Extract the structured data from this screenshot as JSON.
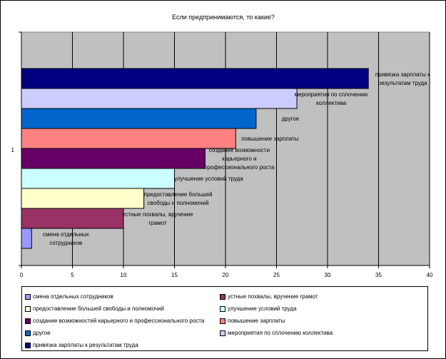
{
  "chart_data": {
    "type": "bar",
    "orientation": "horizontal",
    "title": "Если предпринимаются, то какие?",
    "category_label": "1",
    "xlim": [
      0,
      40
    ],
    "x_ticks": [
      0,
      5,
      10,
      15,
      20,
      25,
      30,
      35,
      40
    ],
    "grid": true,
    "plot_background": "#c0c0c0",
    "series": [
      {
        "name": "смена отдельных сотрудников",
        "value": 1,
        "color": "#9999ff",
        "label_lines": [
          "смена отдельных",
          "сотрудников"
        ]
      },
      {
        "name": "устные похвалы, вручение грамот",
        "value": 10,
        "color": "#993366",
        "label_lines": [
          "устные похвалы, вручение",
          "грамот"
        ]
      },
      {
        "name": "предоставление большей свободы и полномочий",
        "value": 12,
        "color": "#ffffcc",
        "label_lines": [
          "предоставление большей",
          "свободы и полномочий"
        ]
      },
      {
        "name": "улучшение условий труда",
        "value": 15,
        "color": "#ccffff",
        "label_lines": [
          "улучшение условий труда"
        ]
      },
      {
        "name": "создание возможностей карьерного и профессионального роста",
        "value": 18,
        "color": "#660066",
        "label_lines": [
          "создание возможности",
          "карьерного и",
          "профессионального роста"
        ]
      },
      {
        "name": "повышение зарплаты",
        "value": 21,
        "color": "#ff8080",
        "label_lines": [
          "повышение зарплаты"
        ]
      },
      {
        "name": "другое",
        "value": 23,
        "color": "#0066cc",
        "label_lines": [
          "другое"
        ]
      },
      {
        "name": "мероприятия по сплочению коллектива",
        "value": 27,
        "color": "#ccccff",
        "label_lines": [
          "мероприятия по сплочению",
          "коллектива"
        ]
      },
      {
        "name": "привязка зарплаты к результатам труда",
        "value": 34,
        "color": "#000080",
        "label_lines": [
          "привязка зарплаты к",
          "результатам труда"
        ]
      }
    ],
    "legend": {
      "placement": "bottom",
      "items": [
        {
          "label": "смена отдельных сотрудников",
          "color": "#9999ff"
        },
        {
          "label": "устные похвалы, вручение грамот",
          "color": "#993366"
        },
        {
          "label": "предоставление большей свободы и полномочий",
          "color": "#ffffcc"
        },
        {
          "label": "улучшение условий труда",
          "color": "#ccffff"
        },
        {
          "label": "создание возможностей карьерного и профессионального роста",
          "color": "#660066"
        },
        {
          "label": "повышение зарплаты",
          "color": "#ff8080"
        },
        {
          "label": "другое",
          "color": "#0066cc"
        },
        {
          "label": "мероприятия по сплочению коллектива",
          "color": "#ccccff"
        },
        {
          "label": "привязка зарплаты к результатам труда",
          "color": "#000080"
        }
      ]
    }
  }
}
